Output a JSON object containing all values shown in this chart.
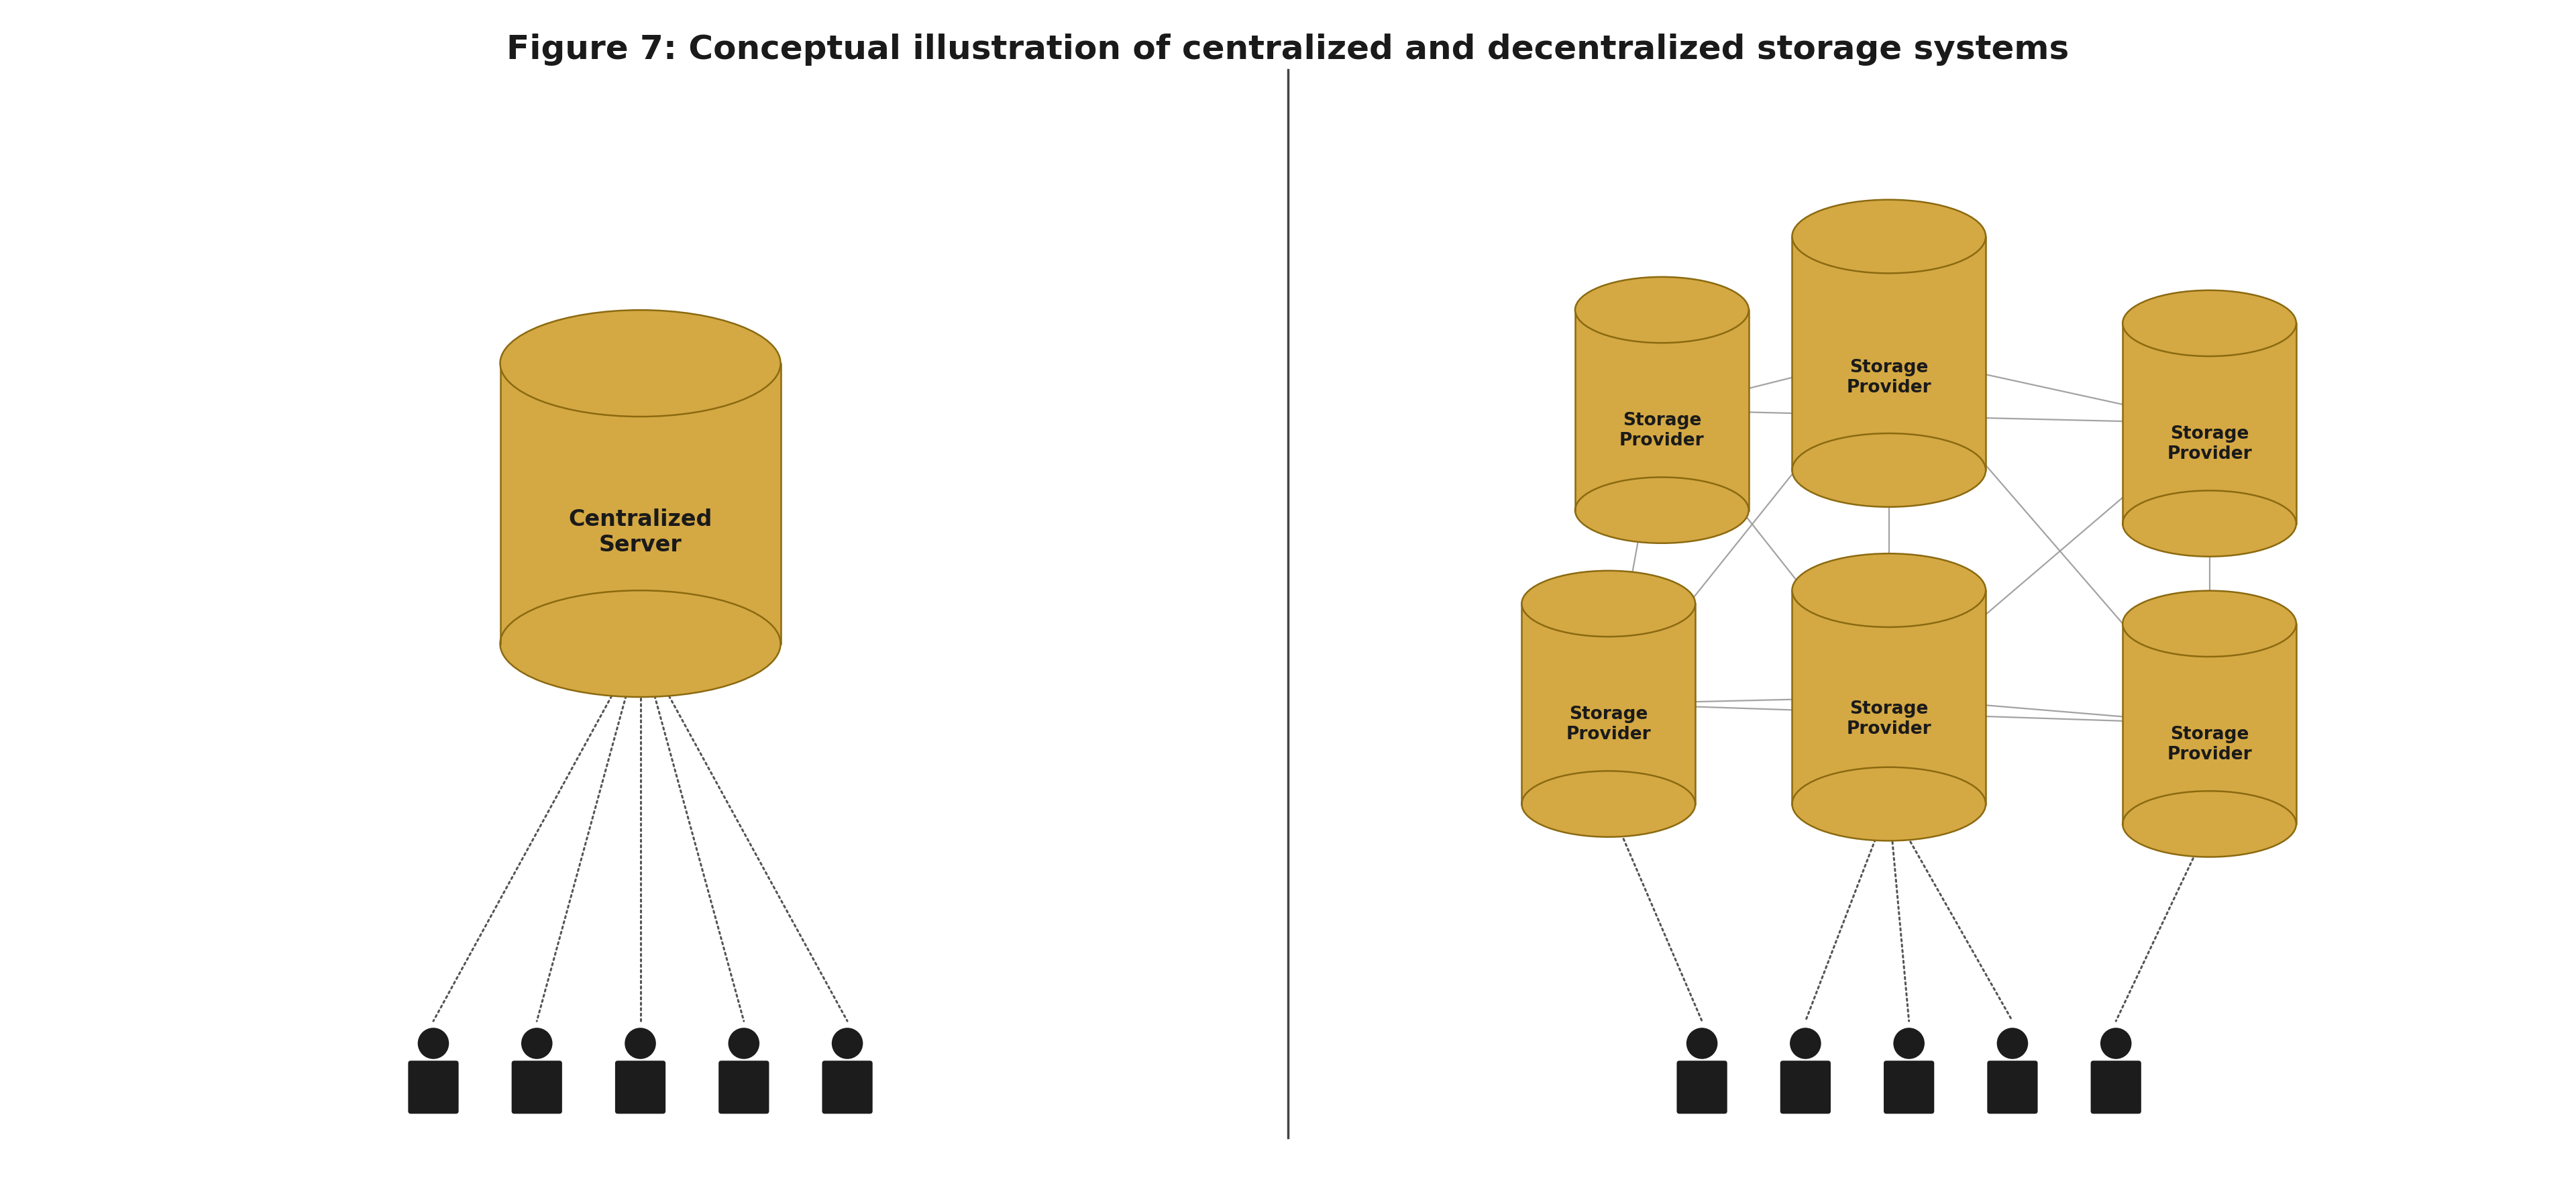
{
  "title": "Figure 7: Conceptual illustration of centralized and decentralized storage systems",
  "title_fontsize": 36,
  "title_fontweight": "bold",
  "bg_color": "#ffffff",
  "cylinder_fill": "#D4A843",
  "cylinder_edge": "#8B6A10",
  "text_color": "#1a1a1a",
  "person_color": "#1c1c1c",
  "dotted_color": "#555555",
  "divider_color": "#444444",
  "left_server_label": "Centralized\nServer",
  "right_node_label": "Storage\nProvider",
  "font_size_label": 24,
  "font_size_small": 19
}
